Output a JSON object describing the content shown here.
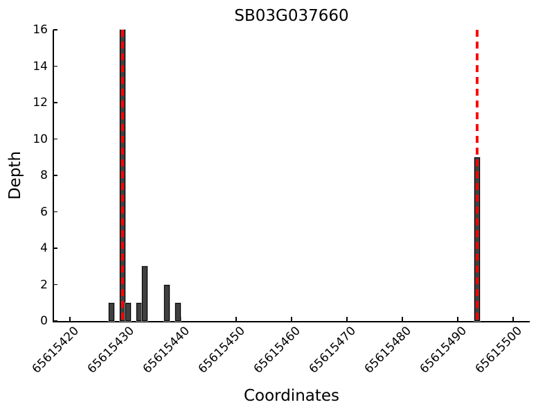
{
  "chart_data": {
    "type": "bar",
    "title": "SB03G037660",
    "xlabel": "Coordinates",
    "ylabel": "Depth",
    "x_ticks": [
      65615420,
      65615430,
      65615440,
      65615450,
      65615460,
      65615470,
      65615480,
      65615490,
      65615500
    ],
    "y_ticks": [
      0,
      2,
      4,
      6,
      8,
      10,
      12,
      14,
      16
    ],
    "xlim": [
      65615417,
      65615503
    ],
    "ylim": [
      0,
      16
    ],
    "grid": false,
    "legend": false,
    "bar_width": 1,
    "bars": [
      {
        "coordinate": 65615427,
        "depth": 1
      },
      {
        "coordinate": 65615429,
        "depth": 16
      },
      {
        "coordinate": 65615430,
        "depth": 1
      },
      {
        "coordinate": 65615432,
        "depth": 1
      },
      {
        "coordinate": 65615433,
        "depth": 3
      },
      {
        "coordinate": 65615437,
        "depth": 2
      },
      {
        "coordinate": 65615439,
        "depth": 1
      },
      {
        "coordinate": 65615493,
        "depth": 9
      }
    ],
    "marker_lines": {
      "positions": [
        65615429,
        65615493
      ],
      "style": "dashed",
      "color": "#ff0000"
    },
    "colors": {
      "bar_fill": "#404040",
      "bar_edge": "#000000",
      "axis": "#000000",
      "text": "#000000",
      "background": "#ffffff"
    }
  }
}
